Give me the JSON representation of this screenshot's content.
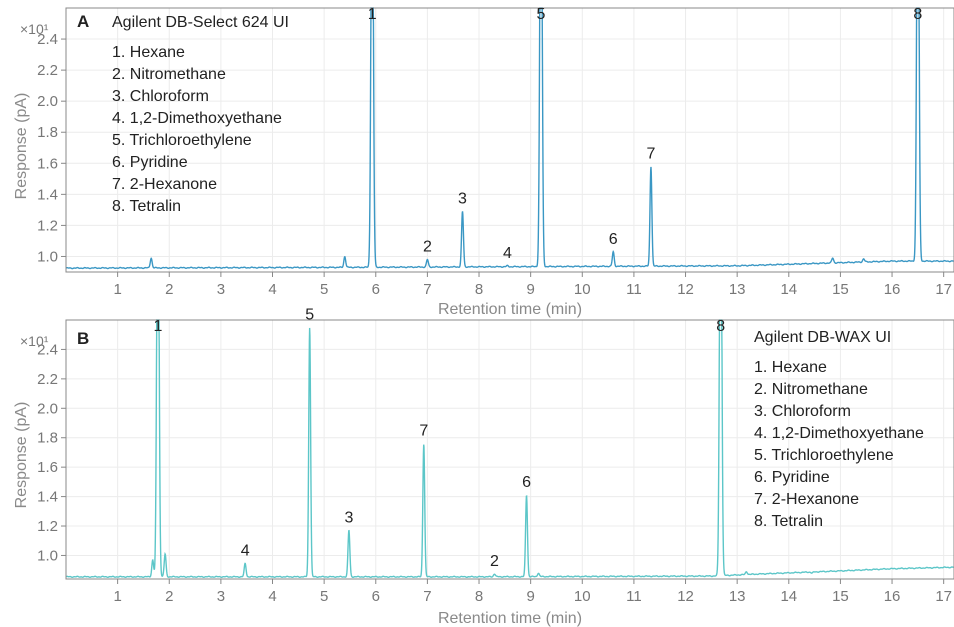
{
  "chart_data": [
    {
      "type": "line",
      "panel_letter": "A",
      "title": "Agilent DB-Select 624 UI",
      "xlabel": "Retention time (min)",
      "ylabel": "Response (pA)",
      "y_multiplier": "×10¹",
      "xlim": [
        0,
        17.2
      ],
      "ylim": [
        0.9,
        2.6
      ],
      "xticks": [
        "1",
        "2",
        "3",
        "4",
        "5",
        "6",
        "7",
        "8",
        "9",
        "10",
        "11",
        "12",
        "13",
        "14",
        "15",
        "16",
        "17"
      ],
      "yticks": [
        "1.0",
        "1.2",
        "1.4",
        "1.6",
        "1.8",
        "2.0",
        "2.2",
        "2.4"
      ],
      "grid": true,
      "legend_position": "top-left",
      "color": "#3a97c4",
      "legend": [
        "1.  Hexane",
        "2.  Nitromethane",
        "3.  Chloroform",
        "4.  1,2-Dimethoxyethane",
        "5.  Trichloroethylene",
        "6.  Pyridine",
        "7.  2-Hexanone",
        "8.  Tetralin"
      ],
      "peaks": [
        {
          "label": "1",
          "rt": 5.93,
          "height": 2.6,
          "offscale": true
        },
        {
          "label": "2",
          "rt": 7.0,
          "height": 0.98
        },
        {
          "label": "3",
          "rt": 7.68,
          "height": 1.29
        },
        {
          "label": "4",
          "rt": 8.55,
          "height": 0.94
        },
        {
          "label": "5",
          "rt": 9.2,
          "height": 2.6,
          "offscale": true
        },
        {
          "label": "6",
          "rt": 10.6,
          "height": 1.03
        },
        {
          "label": "7",
          "rt": 11.33,
          "height": 1.58
        },
        {
          "label": "8",
          "rt": 16.5,
          "height": 2.6,
          "offscale": true
        }
      ],
      "minor_peaks": [
        {
          "rt": 1.65,
          "height": 0.99
        },
        {
          "rt": 5.4,
          "height": 1.0
        },
        {
          "rt": 14.85,
          "height": 0.99
        },
        {
          "rt": 15.45,
          "height": 0.985
        }
      ],
      "baseline": [
        [
          0,
          0.925
        ],
        [
          5.5,
          0.93
        ],
        [
          13.0,
          0.94
        ],
        [
          14.5,
          0.955
        ],
        [
          16.0,
          0.97
        ],
        [
          17.2,
          0.97
        ]
      ]
    },
    {
      "type": "line",
      "panel_letter": "B",
      "title": "Agilent DB-WAX UI",
      "xlabel": "Retention time (min)",
      "ylabel": "Response (pA)",
      "y_multiplier": "×10¹",
      "xlim": [
        0,
        17.2
      ],
      "ylim": [
        0.84,
        2.6
      ],
      "xticks": [
        "1",
        "2",
        "3",
        "4",
        "5",
        "6",
        "7",
        "8",
        "9",
        "10",
        "11",
        "12",
        "13",
        "14",
        "15",
        "16",
        "17"
      ],
      "yticks": [
        "1.0",
        "1.2",
        "1.4",
        "1.6",
        "1.8",
        "2.0",
        "2.2",
        "2.4"
      ],
      "grid": true,
      "legend_position": "top-right",
      "color": "#5cc6c8",
      "legend": [
        "1.  Hexane",
        "2.  Nitromethane",
        "3.  Chloroform",
        "4.  1,2-Dimethoxyethane",
        "5.  Trichloroethylene",
        "6.  Pyridine",
        "7.  2-Hexanone",
        "8.  Tetralin"
      ],
      "peaks": [
        {
          "label": "1",
          "rt": 1.78,
          "height": 2.6,
          "offscale": true
        },
        {
          "label": "2",
          "rt": 8.3,
          "height": 0.875
        },
        {
          "label": "3",
          "rt": 5.48,
          "height": 1.17
        },
        {
          "label": "4",
          "rt": 3.47,
          "height": 0.945
        },
        {
          "label": "5",
          "rt": 4.72,
          "height": 2.55
        },
        {
          "label": "6",
          "rt": 8.92,
          "height": 1.41
        },
        {
          "label": "7",
          "rt": 6.93,
          "height": 1.76
        },
        {
          "label": "8",
          "rt": 12.68,
          "height": 2.6,
          "offscale": true
        }
      ],
      "minor_peaks": [
        {
          "rt": 1.68,
          "height": 0.97
        },
        {
          "rt": 1.92,
          "height": 1.01
        },
        {
          "rt": 9.15,
          "height": 0.88
        },
        {
          "rt": 13.18,
          "height": 0.89
        },
        {
          "rt": 14.45,
          "height": 0.88
        }
      ],
      "baseline": [
        [
          0,
          0.855
        ],
        [
          8.0,
          0.855
        ],
        [
          12.5,
          0.86
        ],
        [
          13.5,
          0.875
        ],
        [
          15.0,
          0.895
        ],
        [
          16.0,
          0.91
        ],
        [
          17.2,
          0.92
        ]
      ]
    }
  ]
}
